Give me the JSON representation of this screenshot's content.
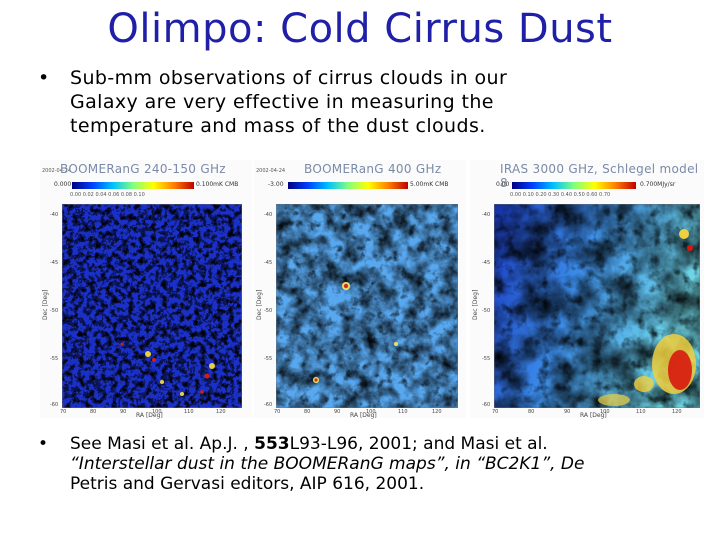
{
  "slide": {
    "title": "Olimpo: Cold Cirrus Dust",
    "bullet1": {
      "marker": "•",
      "lines": [
        "Sub-mm observations of cirrus clouds in our",
        "Galaxy are very effective in measuring the",
        "temperature and mass of the dust clouds."
      ]
    },
    "bullet2": {
      "marker": "•",
      "line1_pre": "See Masi et al. Ap.J. , ",
      "line1_bold": "553",
      "line1_post": "L93-L96, 2001; and Masi et al.",
      "line2": "“Interstellar dust in the BOOMERanG maps”, in “BC2K1”, De",
      "line3": "Petris and Gervasi editors, AIP 616, 2001."
    }
  },
  "maps": [
    {
      "date": "2002-04-24",
      "title": "BOOMERanG 240-150 GHz",
      "cbar_left": "0.000",
      "cbar_right": "0.100mK CMB",
      "cbar_ticks": "0.00   0.02   0.04   0.06   0.08   0.10",
      "colors": {
        "a": "#1a30c8",
        "b": "#2f6fe0",
        "c": "#5ad0e8",
        "d": "#e8d040",
        "e": "#d02010"
      },
      "yticks": [
        "-40",
        "-45",
        "-50",
        "-55",
        "-60"
      ],
      "ylabel": "Dec [Deg]",
      "xticks": [
        "70",
        "80",
        "90",
        "100",
        "110",
        "120"
      ],
      "xlabel": "RA [Deg]"
    },
    {
      "date": "2002-04-24",
      "title": "BOOMERanG 400 GHz",
      "cbar_left": "-3.00",
      "cbar_right": "5.00mK CMB",
      "cbar_ticks": "",
      "colors": {
        "a": "#3a68e0",
        "b": "#58a8f0",
        "c": "#8ee0e0",
        "d": "#f0e060",
        "e": "#d03020"
      },
      "yticks": [
        "-40",
        "-45",
        "-50",
        "-55",
        "-60"
      ],
      "ylabel": "Dec [Deg]",
      "xticks": [
        "70",
        "80",
        "90",
        "100",
        "110",
        "120"
      ],
      "xlabel": "RA [Deg]"
    },
    {
      "date": "",
      "title": "IRAS 3000 GHz, Schlegel model 8",
      "cbar_left": "0.00",
      "cbar_right": "0.700MJy/sr",
      "cbar_ticks": "0.00  0.10  0.20  0.30  0.40  0.50  0.60  0.70",
      "colors": {
        "a": "#1838c0",
        "b": "#3a8ae8",
        "c": "#70d8e8",
        "d": "#f0d040",
        "e": "#d81810"
      },
      "yticks": [
        "-40",
        "-45",
        "-50",
        "-55",
        "-60"
      ],
      "ylabel": "Dec [Deg]",
      "xticks": [
        "70",
        "80",
        "90",
        "100",
        "110",
        "120"
      ],
      "xlabel": "RA [Deg]"
    }
  ]
}
